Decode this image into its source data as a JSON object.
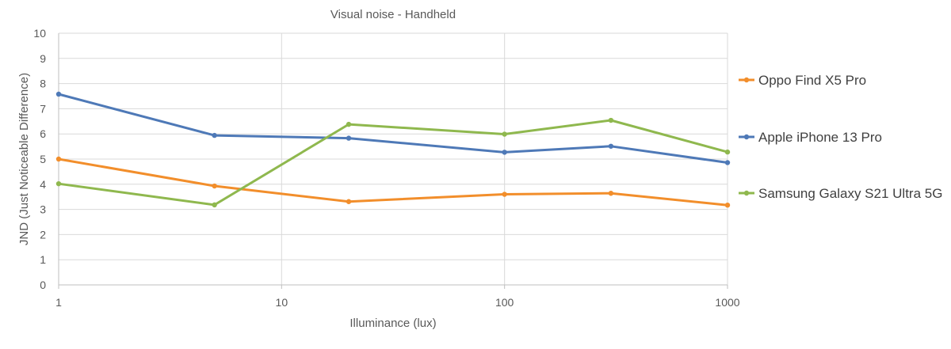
{
  "chart_data": {
    "type": "line",
    "title": "Visual noise - Handheld",
    "xlabel": "Illuminance (lux)",
    "ylabel": "JND (Just Noticeable Difference)",
    "xscale": "log",
    "xlim": [
      1,
      1000
    ],
    "ylim": [
      0,
      10
    ],
    "xticks": [
      "1",
      "10",
      "100",
      "1000"
    ],
    "yticks": [
      "0",
      "1",
      "2",
      "3",
      "4",
      "5",
      "6",
      "7",
      "8",
      "9",
      "10"
    ],
    "grid": true,
    "legend_position": "right",
    "series": [
      {
        "name": "Oppo Find X5 Pro",
        "color": "#f28e2b",
        "points": [
          [
            1,
            5.0
          ],
          [
            5,
            3.93
          ],
          [
            20,
            3.31
          ],
          [
            100,
            3.6
          ],
          [
            300,
            3.64
          ],
          [
            1000,
            3.17
          ]
        ]
      },
      {
        "name": "Apple iPhone 13 Pro",
        "color": "#4e79b7",
        "points": [
          [
            1,
            7.58
          ],
          [
            5,
            5.94
          ],
          [
            20,
            5.83
          ],
          [
            100,
            5.27
          ],
          [
            300,
            5.51
          ],
          [
            1000,
            4.86
          ]
        ]
      },
      {
        "name": "Samsung Galaxy S21 Ultra 5G",
        "color": "#8fb84e",
        "points": [
          [
            1,
            4.02
          ],
          [
            5,
            3.18
          ],
          [
            20,
            6.38
          ],
          [
            100,
            5.99
          ],
          [
            300,
            6.54
          ],
          [
            1000,
            5.28
          ]
        ]
      }
    ]
  }
}
